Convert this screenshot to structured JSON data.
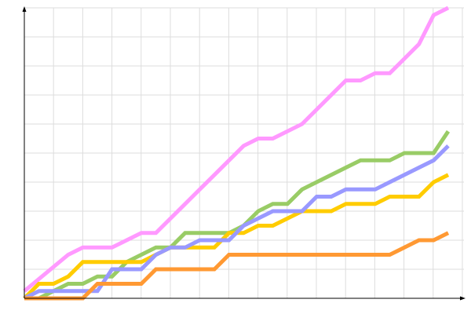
{
  "chart_data": {
    "type": "line",
    "title": "",
    "xlabel": "",
    "ylabel": "",
    "xlim": [
      0,
      29
    ],
    "ylim": [
      0,
      10
    ],
    "grid": true,
    "legend": "none",
    "series": [
      {
        "color": "#ff99ff",
        "points": [
          [
            0,
            0.25
          ],
          [
            3,
            1.5
          ],
          [
            4,
            1.75
          ],
          [
            6,
            1.75
          ],
          [
            8,
            2.25
          ],
          [
            9,
            2.25
          ],
          [
            11,
            3.25
          ],
          [
            12,
            3.75
          ],
          [
            13,
            4.25
          ],
          [
            14,
            4.75
          ],
          [
            15,
            5.25
          ],
          [
            16,
            5.5
          ],
          [
            17,
            5.5
          ],
          [
            19,
            6
          ],
          [
            20,
            6.5
          ],
          [
            22,
            7.5
          ],
          [
            23,
            7.5
          ],
          [
            24,
            7.75
          ],
          [
            25,
            7.75
          ],
          [
            27,
            8.75
          ],
          [
            28,
            9.75
          ],
          [
            29,
            10
          ]
        ]
      },
      {
        "color": "#99cc66",
        "points": [
          [
            0,
            0
          ],
          [
            1,
            0
          ],
          [
            2,
            0.25
          ],
          [
            3,
            0.5
          ],
          [
            4,
            0.5
          ],
          [
            5,
            0.75
          ],
          [
            6,
            0.75
          ],
          [
            7,
            1.25
          ],
          [
            8,
            1.5
          ],
          [
            9,
            1.75
          ],
          [
            10,
            1.75
          ],
          [
            11,
            2.25
          ],
          [
            14,
            2.25
          ],
          [
            15,
            2.5
          ],
          [
            16,
            3
          ],
          [
            17,
            3.25
          ],
          [
            18,
            3.25
          ],
          [
            19,
            3.75
          ],
          [
            20,
            4
          ],
          [
            21,
            4.25
          ],
          [
            22,
            4.5
          ],
          [
            23,
            4.75
          ],
          [
            25,
            4.75
          ],
          [
            26,
            5
          ],
          [
            28,
            5
          ],
          [
            29,
            5.75
          ]
        ]
      },
      {
        "color": "#ffcc00",
        "points": [
          [
            0,
            0
          ],
          [
            1,
            0.5
          ],
          [
            2,
            0.5
          ],
          [
            3,
            0.75
          ],
          [
            4,
            1.25
          ],
          [
            8,
            1.25
          ],
          [
            9,
            1.5
          ],
          [
            10,
            1.75
          ],
          [
            13,
            1.75
          ],
          [
            14,
            2.25
          ],
          [
            15,
            2.25
          ],
          [
            16,
            2.5
          ],
          [
            17,
            2.5
          ],
          [
            18,
            2.75
          ],
          [
            19,
            3
          ],
          [
            21,
            3
          ],
          [
            22,
            3.25
          ],
          [
            24,
            3.25
          ],
          [
            25,
            3.5
          ],
          [
            27,
            3.5
          ],
          [
            28,
            4
          ],
          [
            29,
            4.25
          ]
        ]
      },
      {
        "color": "#9999ff",
        "points": [
          [
            0,
            0
          ],
          [
            1,
            0.25
          ],
          [
            5,
            0.25
          ],
          [
            6,
            1
          ],
          [
            8,
            1
          ],
          [
            9,
            1.5
          ],
          [
            10,
            1.75
          ],
          [
            11,
            1.75
          ],
          [
            12,
            2
          ],
          [
            14,
            2
          ],
          [
            15,
            2.5
          ],
          [
            16,
            2.75
          ],
          [
            17,
            3
          ],
          [
            19,
            3
          ],
          [
            20,
            3.5
          ],
          [
            21,
            3.5
          ],
          [
            22,
            3.75
          ],
          [
            24,
            3.75
          ],
          [
            25,
            4
          ],
          [
            26,
            4.25
          ],
          [
            27,
            4.5
          ],
          [
            28,
            4.75
          ],
          [
            29,
            5.25
          ]
        ]
      },
      {
        "color": "#ff9933",
        "points": [
          [
            0,
            0
          ],
          [
            4,
            0
          ],
          [
            5,
            0.5
          ],
          [
            8,
            0.5
          ],
          [
            9,
            1
          ],
          [
            13,
            1
          ],
          [
            14,
            1.5
          ],
          [
            25,
            1.5
          ],
          [
            27,
            2
          ],
          [
            28,
            2
          ],
          [
            29,
            2.25
          ]
        ]
      }
    ]
  }
}
